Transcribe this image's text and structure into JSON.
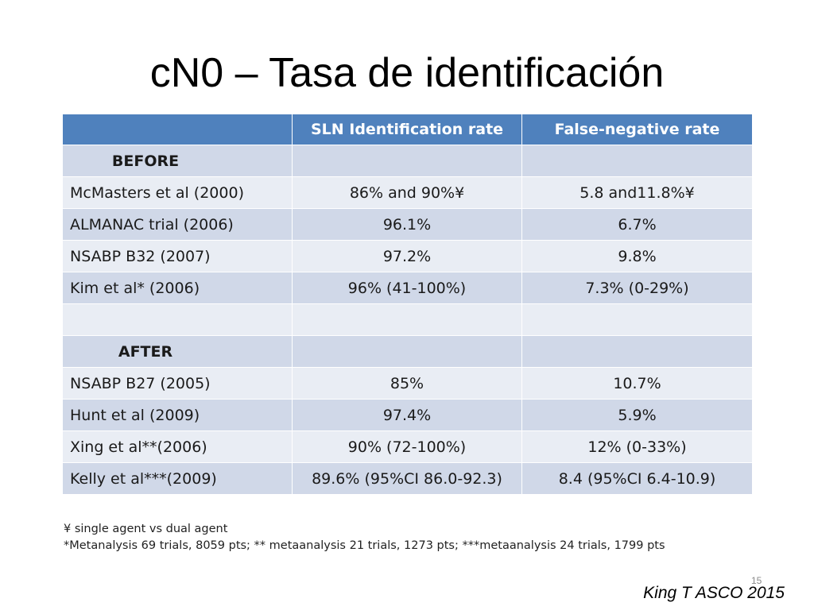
{
  "slide": {
    "title": "cN0 – Tasa de identificación",
    "page_number": "15",
    "citation": "King T ASCO 2015"
  },
  "table": {
    "headers": [
      "",
      "SLN Identification rate",
      "False-negative rate"
    ],
    "rows": [
      {
        "type": "section",
        "label": "BEFORE",
        "sln": "",
        "fnr": ""
      },
      {
        "type": "data",
        "label": "McMasters et al (2000)",
        "sln": "86% and 90%¥",
        "fnr": "5.8 and11.8%¥"
      },
      {
        "type": "data",
        "label": "ALMANAC trial (2006)",
        "sln": "96.1%",
        "fnr": "6.7%"
      },
      {
        "type": "data",
        "label": "NSABP B32 (2007)",
        "sln": "97.2%",
        "fnr": "9.8%"
      },
      {
        "type": "data",
        "label": "Kim et al* (2006)",
        "sln": "96% (41-100%)",
        "fnr": "7.3% (0-29%)"
      },
      {
        "type": "empty",
        "label": "",
        "sln": "",
        "fnr": ""
      },
      {
        "type": "section",
        "label": "AFTER",
        "sln": "",
        "fnr": ""
      },
      {
        "type": "data",
        "label": "NSABP B27 (2005)",
        "sln": "85%",
        "fnr": "10.7%"
      },
      {
        "type": "data",
        "label": "Hunt et al (2009)",
        "sln": "97.4%",
        "fnr": "5.9%"
      },
      {
        "type": "data",
        "label": "Xing et al**(2006)",
        "sln": "90% (72-100%)",
        "fnr": "12% (0-33%)"
      },
      {
        "type": "data",
        "label": "Kelly et al***(2009)",
        "sln": "89.6% (95%CI 86.0-92.3)",
        "fnr": "8.4 (95%CI 6.4-10.9)"
      }
    ]
  },
  "footnotes": [
    "¥ single agent vs dual agent",
    "*Metanalysis 69 trials, 8059 pts; ** metaanalysis 21 trials, 1273 pts; ***metaanalysis 24 trials, 1799 pts"
  ]
}
